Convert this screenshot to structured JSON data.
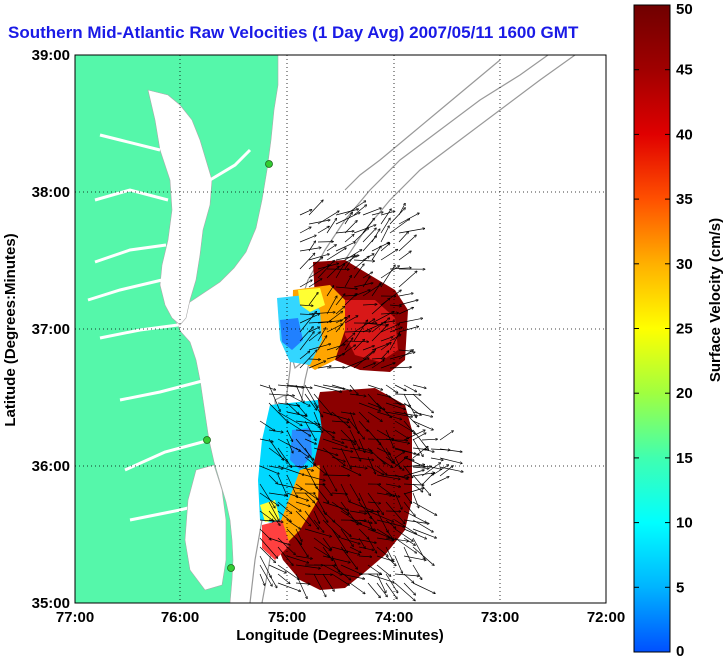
{
  "title": "Southern Mid-Atlantic Raw Velocities (1 Day Avg) 2007/05/11 1600 GMT",
  "xlabel": "Longitude (Degrees:Minutes)",
  "ylabel": "Latitude (Degrees:Minutes)",
  "x_ticks": [
    "77:00",
    "76:00",
    "75:00",
    "74:00",
    "73:00",
    "72:00"
  ],
  "y_ticks": [
    "39:00",
    "38:00",
    "37:00",
    "36:00",
    "35:00"
  ],
  "colorbar": {
    "label": "Surface Velocity (cm/s)",
    "min": 0,
    "max": 50,
    "ticks": [
      "0",
      "5",
      "10",
      "15",
      "20",
      "25",
      "30",
      "35",
      "40",
      "45",
      "50"
    ],
    "colors": [
      "#0050ff",
      "#00b4ff",
      "#00ffff",
      "#40ffb0",
      "#a0ff40",
      "#ffff00",
      "#ffb000",
      "#ff5000",
      "#e00000",
      "#a00000",
      "#700000"
    ]
  },
  "colors": {
    "land": "#55f7aa",
    "title": "#1a1ae6",
    "bathymetry": "#999999",
    "station": "#33cc33"
  }
}
